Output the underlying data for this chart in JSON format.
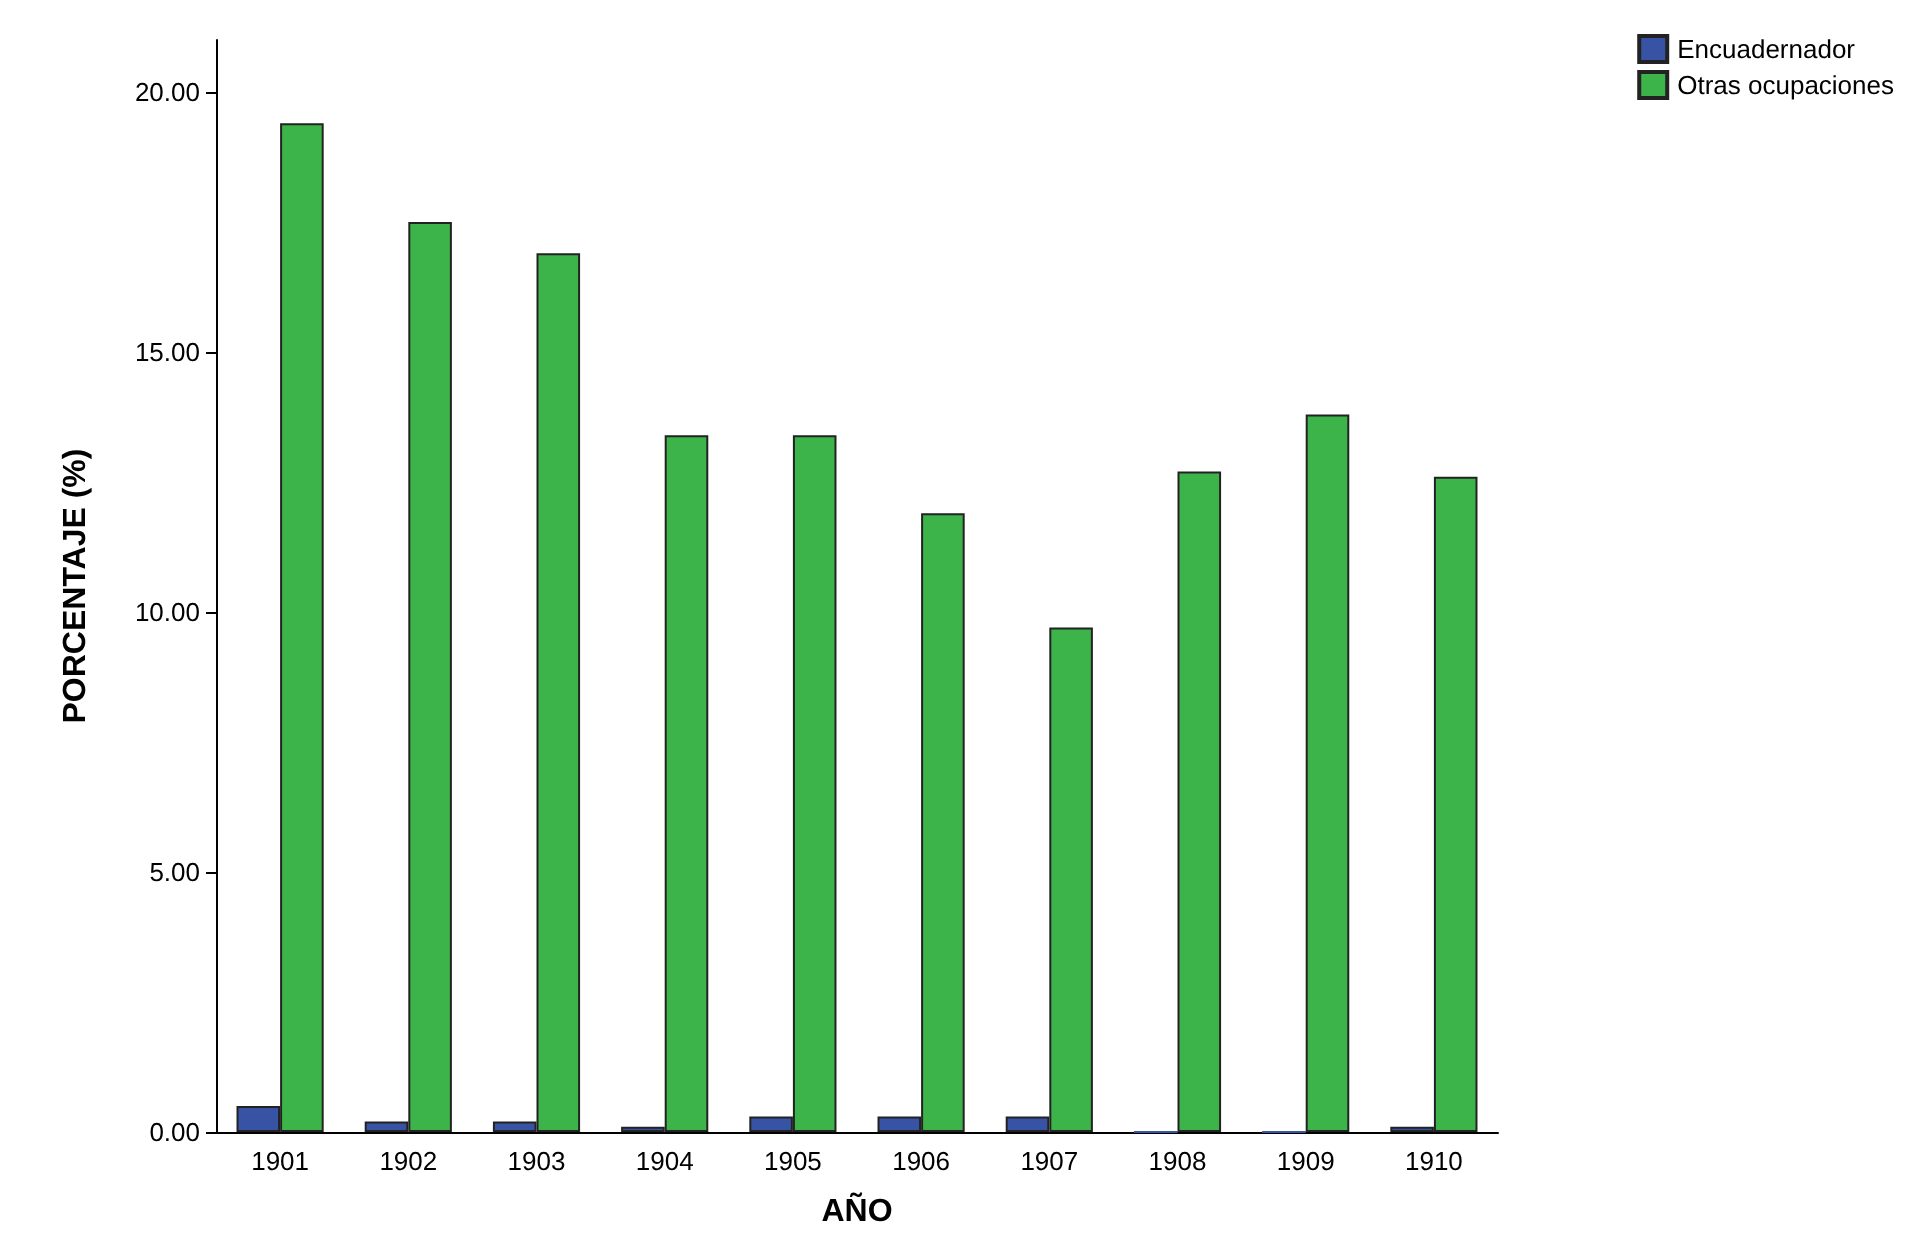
{
  "chart_data": {
    "type": "bar",
    "xlabel": "AÑO",
    "ylabel": "PORCENTAJE (%)",
    "categories": [
      "1901",
      "1902",
      "1903",
      "1904",
      "1905",
      "1906",
      "1907",
      "1908",
      "1909",
      "1910"
    ],
    "series": [
      {
        "name": "Encuadernador",
        "color": "#3953a4",
        "values": [
          0.5,
          0.2,
          0.2,
          0.1,
          0.3,
          0.3,
          0.3,
          0.0,
          0.0,
          0.1
        ]
      },
      {
        "name": "Otras ocupaciones",
        "color": "#3cb44a",
        "values": [
          19.4,
          17.5,
          16.9,
          13.4,
          13.4,
          11.9,
          9.7,
          12.7,
          13.8,
          12.6
        ]
      }
    ],
    "ylim": [
      0,
      21
    ],
    "yticks": [
      {
        "value": 0,
        "label": "0.00"
      },
      {
        "value": 5,
        "label": "5.00"
      },
      {
        "value": 10,
        "label": "10.00"
      },
      {
        "value": 15,
        "label": "15.00"
      },
      {
        "value": 20,
        "label": "20.00"
      }
    ],
    "grid": false,
    "legend": "top right"
  }
}
